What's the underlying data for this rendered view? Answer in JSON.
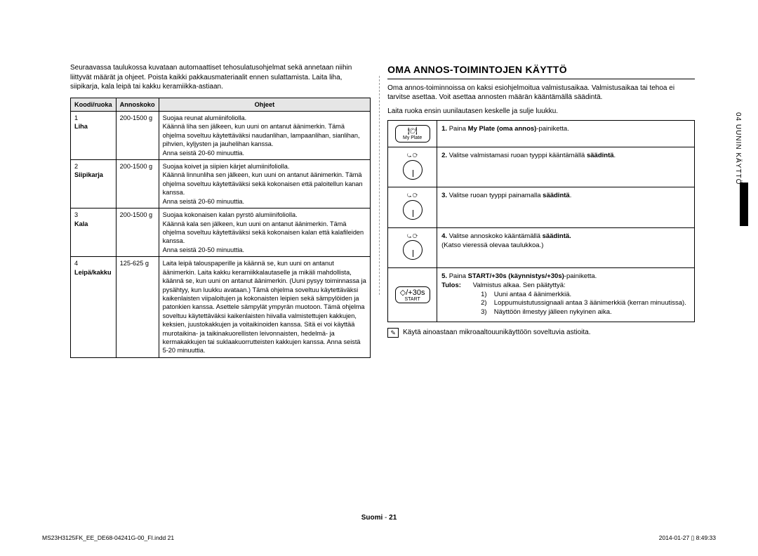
{
  "left": {
    "intro": "Seuraavassa taulukossa kuvataan automaattiset tehosulatusohjelmat sekä annetaan niihin liittyvät määrät ja ohjeet. Poista kaikki pakkausmateriaalit ennen sulattamista. Laita liha, siipikarja, kala leipä tai kakku keramiikka-astiaan.",
    "headers": {
      "code": "Koodi/ruoka",
      "portion": "Annoskoko",
      "instructions": "Ohjeet"
    },
    "rows": [
      {
        "num": "1",
        "food": "Liha",
        "portion": "200-1500 g",
        "instr": "Suojaa reunat alumiinifoliolla.\nKäännä liha sen jälkeen, kun uuni on antanut äänimerkin. Tämä ohjelma soveltuu käytettäväksi naudanlihan, lampaanlihan, sianlihan, pihvien, kyljysten ja jauhelihan kanssa.\nAnna seistä 20-60 minuuttia."
      },
      {
        "num": "2",
        "food": "Siipikarja",
        "portion": "200-1500 g",
        "instr": "Suojaa koivet ja siipien kärjet alumiinifoliolla.\nKäännä linnunliha sen jälkeen, kun uuni on antanut äänimerkin. Tämä ohjelma soveltuu käytettäväksi sekä kokonaisen että paloitellun kanan kanssa.\nAnna seistä 20-60 minuuttia."
      },
      {
        "num": "3",
        "food": "Kala",
        "portion": "200-1500 g",
        "instr": "Suojaa kokonaisen kalan pyrstö alumiinifoliolla.\nKäännä kala sen jälkeen, kun uuni on antanut äänimerkin. Tämä ohjelma soveltuu käytettäväksi sekä kokonaisen kalan että kalafileiden kanssa.\nAnna seistä 20-50 minuuttia."
      },
      {
        "num": "4",
        "food": "Leipä/kakku",
        "portion": "125-625 g",
        "instr": "Laita leipä talouspaperille ja käännä se, kun uuni on antanut äänimerkin. Laita kakku keramiikkalautaselle ja mikäli mahdollista, käännä se, kun uuni on antanut äänimerkin. (Uuni pysyy toiminnassa ja pysähtyy, kun luukku avataan.) Tämä ohjelma soveltuu käytettäväksi kaikenlaisten viipaloitujen ja kokonaisten leipien sekä sämpylöiden ja patonkien kanssa. Asettele sämpylät ympyrän muotoon. Tämä ohjelma soveltuu käytettäväksi kaikenlaisten hiivalla valmistettujen kakkujen, keksien, juustokakkujen ja voitaikinoiden kanssa. Sitä ei voi käyttää murotaikina- ja taikinakuorellisten leivonnaisten, hedelmä- ja kermakakkujen tai suklaakuorrutteisten kakkujen kanssa. Anna seistä 5-20 minuuttia."
      }
    ]
  },
  "right": {
    "title": "OMA ANNOS-TOIMINTOJEN KÄYTTÖ",
    "intro1": "Oma annos-toiminnoissa on kaksi esiohjelmoitua valmistusaikaa. Valmistusaikaa tai tehoa ei tarvitse asettaa. Voit asettaa annosten määrän kääntämällä säädintä.",
    "intro2": "Laita ruoka ensin uunilautasen keskelle ja sulje luukku.",
    "steps": [
      {
        "icon": "myplate",
        "iconLabel": "My Plate",
        "num": "1.",
        "textPre": "Paina ",
        "bold": "My Plate (oma annos)",
        "textPost": "-painiketta."
      },
      {
        "icon": "dial",
        "num": "2.",
        "textPre": "Valitse valmistamasi ruoan tyyppi kääntämällä ",
        "bold": "säädintä",
        "textPost": "."
      },
      {
        "icon": "dial",
        "num": "3.",
        "textPre": "Valitse ruoan tyyppi painamalla ",
        "bold": "säädintä",
        "textPost": "."
      },
      {
        "icon": "dial",
        "num": "4.",
        "textPre": "Valitse annoskoko kääntämällä ",
        "bold": "säädintä.",
        "textPost": "",
        "extra": "(Katso vieressä olevaa taulukkoa.)"
      },
      {
        "icon": "start",
        "iconLabel": "START",
        "num": "5.",
        "textPre": "Paina ",
        "bold": "START/+30s (käynnistys/+30s)",
        "textPost": "-painiketta.",
        "resultLabel": "Tulos:",
        "resultText": "Valmistus alkaa. Sen päätyttyä:",
        "subs": [
          "Uuni antaa 4 äänimerkkiä.",
          "Loppumuistutussignaali antaa 3 äänimerkkiä (kerran minuutissa).",
          "Näyttöön ilmestyy jälleen nykyinen aika."
        ]
      }
    ],
    "note": "Käytä ainoastaan mikroaaltouunikäyttöön soveltuvia astioita."
  },
  "sideTab": "04  UUNIN KÄYTTÖ",
  "footer": {
    "lang": "Suomi",
    "sep": " - ",
    "page": "21"
  },
  "printMeta": {
    "file": "MS23H3125FK_EE_DE68-04241G-00_FI.indd   21",
    "ts": "2014-01-27   ▯ 8:49:33"
  },
  "colors": {
    "th_bg": "#e6e6e6",
    "border": "#000000",
    "text": "#000000",
    "sidebar": "#000000"
  }
}
